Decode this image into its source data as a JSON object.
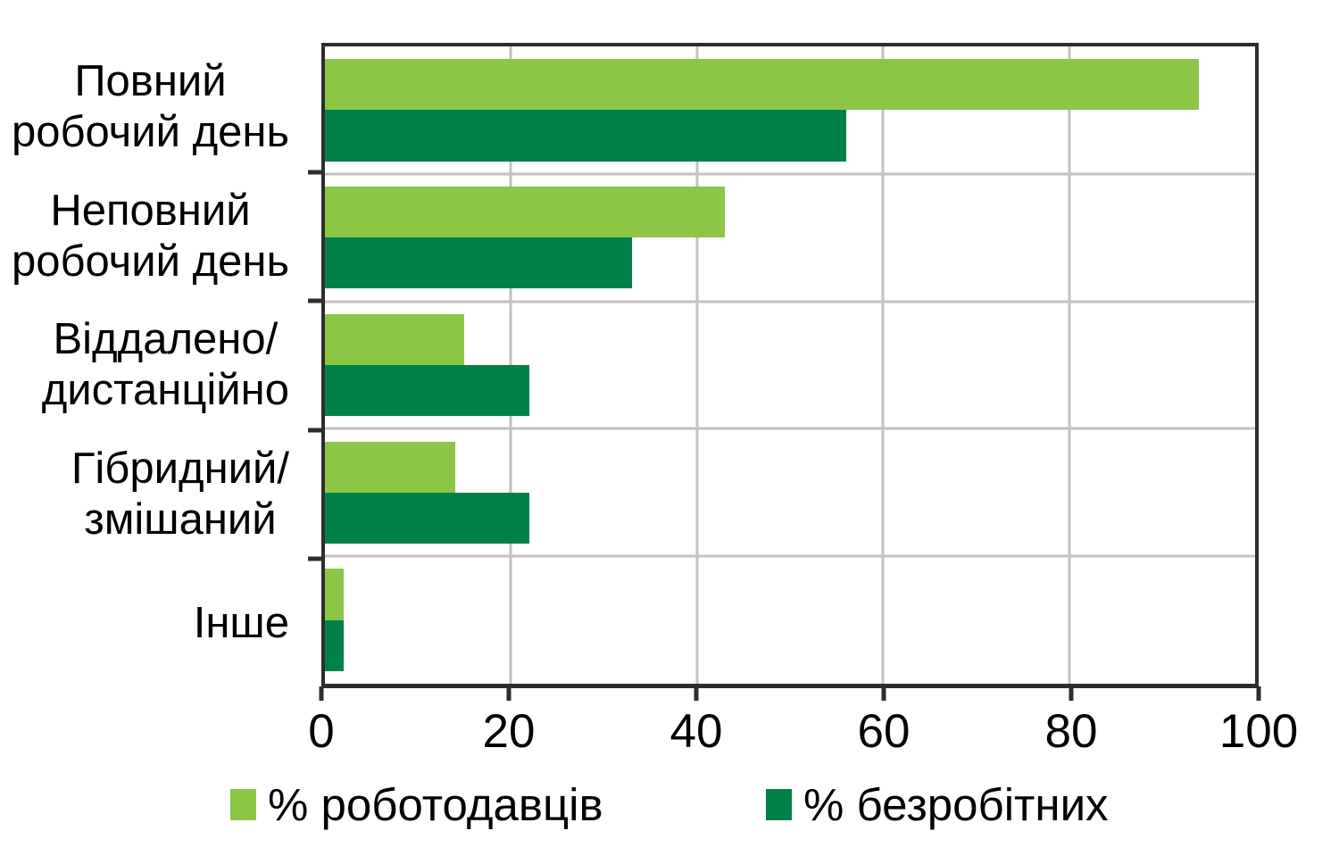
{
  "chart_data": {
    "type": "bar",
    "orientation": "horizontal",
    "title": "",
    "xlabel": "",
    "ylabel": "",
    "categories": [
      "Повний\nробочий день",
      "Неповний\nробочий день",
      "Віддалено/\nдистанційно",
      "Гібридний/\nзмішаний",
      "Інше"
    ],
    "series": [
      {
        "name": "% роботодавців",
        "color": "#8CC646",
        "values": [
          94,
          43,
          15,
          14,
          2
        ]
      },
      {
        "name": "% безробітних",
        "color": "#018148",
        "values": [
          56,
          33,
          22,
          22,
          2
        ]
      }
    ],
    "xlim": [
      0,
      100
    ],
    "xticks": [
      0,
      20,
      40,
      60,
      80,
      100
    ],
    "grid": true,
    "legend_position": "bottom",
    "colors": {
      "axis_border": "#2d2d2d",
      "gridline": "#c2c2c2",
      "background": "#ffffff",
      "text": "#000000"
    }
  }
}
